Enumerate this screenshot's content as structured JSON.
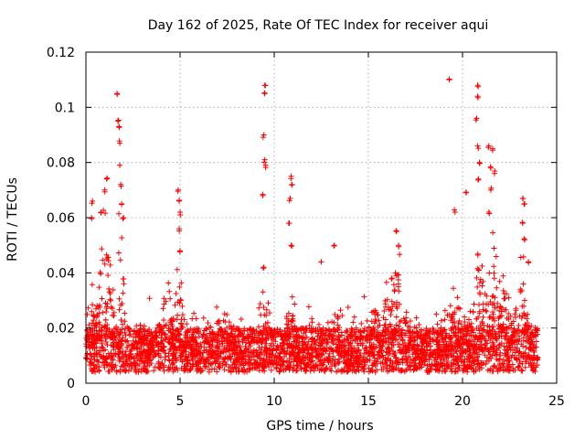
{
  "chart_data": {
    "type": "scatter",
    "title": "Day 162 of 2025, Rate Of TEC Index for receiver aqui",
    "xlabel": "GPS time / hours",
    "ylabel": "ROTI / TECUs",
    "xlim": [
      0,
      25
    ],
    "ylim": [
      0,
      0.12
    ],
    "x_ticks": [
      "0",
      "5",
      "10",
      "15",
      "20",
      "25"
    ],
    "y_ticks": [
      "0",
      "0.02",
      "0.04",
      "0.06",
      "0.08",
      "0.1",
      "0.12"
    ],
    "grid": true,
    "legend": "none",
    "marker": "plus",
    "color": "#ff0000",
    "x_range_of_data": [
      0,
      24
    ],
    "baseline_band": [
      0.004,
      0.02
    ],
    "notable_points": [
      {
        "x": 0.35,
        "y": 0.066
      },
      {
        "x": 0.3,
        "y": 0.06
      },
      {
        "x": 0.8,
        "y": 0.062
      },
      {
        "x": 1.0,
        "y": 0.07
      },
      {
        "x": 1.1,
        "y": 0.074
      },
      {
        "x": 1.65,
        "y": 0.105
      },
      {
        "x": 1.7,
        "y": 0.095
      },
      {
        "x": 1.75,
        "y": 0.093
      },
      {
        "x": 1.8,
        "y": 0.087
      },
      {
        "x": 1.8,
        "y": 0.079
      },
      {
        "x": 1.85,
        "y": 0.072
      },
      {
        "x": 1.9,
        "y": 0.065
      },
      {
        "x": 2.0,
        "y": 0.06
      },
      {
        "x": 4.9,
        "y": 0.07
      },
      {
        "x": 4.95,
        "y": 0.066
      },
      {
        "x": 5.0,
        "y": 0.062
      },
      {
        "x": 4.95,
        "y": 0.056
      },
      {
        "x": 5.0,
        "y": 0.048
      },
      {
        "x": 9.5,
        "y": 0.108
      },
      {
        "x": 9.5,
        "y": 0.105
      },
      {
        "x": 9.45,
        "y": 0.09
      },
      {
        "x": 9.5,
        "y": 0.081
      },
      {
        "x": 9.55,
        "y": 0.079
      },
      {
        "x": 9.4,
        "y": 0.068
      },
      {
        "x": 9.45,
        "y": 0.042
      },
      {
        "x": 10.9,
        "y": 0.075
      },
      {
        "x": 10.95,
        "y": 0.072
      },
      {
        "x": 10.85,
        "y": 0.067
      },
      {
        "x": 10.8,
        "y": 0.058
      },
      {
        "x": 10.9,
        "y": 0.05
      },
      {
        "x": 12.5,
        "y": 0.044
      },
      {
        "x": 13.2,
        "y": 0.05
      },
      {
        "x": 16.5,
        "y": 0.055
      },
      {
        "x": 16.6,
        "y": 0.05
      },
      {
        "x": 19.3,
        "y": 0.11
      },
      {
        "x": 19.6,
        "y": 0.062
      },
      {
        "x": 20.2,
        "y": 0.069
      },
      {
        "x": 20.8,
        "y": 0.108
      },
      {
        "x": 20.8,
        "y": 0.104
      },
      {
        "x": 20.75,
        "y": 0.096
      },
      {
        "x": 20.8,
        "y": 0.086
      },
      {
        "x": 20.9,
        "y": 0.08
      },
      {
        "x": 20.85,
        "y": 0.074
      },
      {
        "x": 21.4,
        "y": 0.086
      },
      {
        "x": 21.6,
        "y": 0.085
      },
      {
        "x": 21.5,
        "y": 0.078
      },
      {
        "x": 21.7,
        "y": 0.076
      },
      {
        "x": 21.5,
        "y": 0.07
      },
      {
        "x": 21.4,
        "y": 0.062
      },
      {
        "x": 23.2,
        "y": 0.067
      },
      {
        "x": 23.3,
        "y": 0.065
      },
      {
        "x": 23.2,
        "y": 0.058
      },
      {
        "x": 23.3,
        "y": 0.052
      },
      {
        "x": 23.5,
        "y": 0.044
      }
    ],
    "activity_peaks": [
      {
        "center": 0.4,
        "height": 0.03,
        "width": 0.2
      },
      {
        "center": 1.0,
        "height": 0.045,
        "width": 0.35
      },
      {
        "center": 1.8,
        "height": 0.05,
        "width": 0.3
      },
      {
        "center": 4.3,
        "height": 0.02,
        "width": 0.3
      },
      {
        "center": 4.95,
        "height": 0.03,
        "width": 0.2
      },
      {
        "center": 7.3,
        "height": 0.012,
        "width": 0.4
      },
      {
        "center": 9.5,
        "height": 0.02,
        "width": 0.3
      },
      {
        "center": 10.9,
        "height": 0.015,
        "width": 0.3
      },
      {
        "center": 13.2,
        "height": 0.012,
        "width": 0.3
      },
      {
        "center": 16.0,
        "height": 0.022,
        "width": 0.9
      },
      {
        "center": 16.6,
        "height": 0.02,
        "width": 0.3
      },
      {
        "center": 19.6,
        "height": 0.018,
        "width": 0.4
      },
      {
        "center": 20.9,
        "height": 0.04,
        "width": 0.4
      },
      {
        "center": 21.6,
        "height": 0.04,
        "width": 0.4
      },
      {
        "center": 22.3,
        "height": 0.02,
        "width": 0.4
      },
      {
        "center": 23.2,
        "height": 0.035,
        "width": 0.3
      }
    ]
  }
}
